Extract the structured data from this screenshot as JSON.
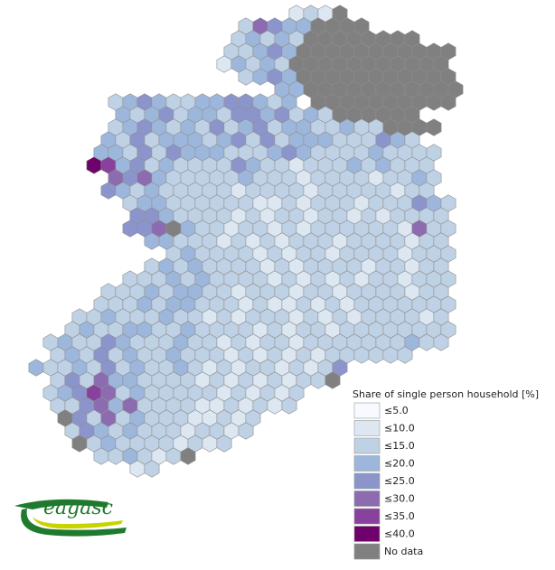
{
  "map": {
    "rows": [
      "..................1218........",
      "..............254338888.......",
      "..............2323288888888...",
      ".............2234388888888888.",
      ".............1323288888888888.",
      "..............234388888888888",
      ".................3388888888888",
      ".....2343223344323.8888888888.",
      "......323423324434232888888..",
      ".....23432324234233223228888...",
      ".....3242333234242333222432...",
      "....332424333222343222232222..",
      "....763423222243221222323222..",
      ".....54532222232221222212232..",
      ".....43232222212222122222122..",
      "......23322222211212221222432.",
      ".......4432222121221221212222.",
      "......44583221221212222221522.",
      "........332221212122212222122.",
      ".........23222212122122221222.",
      "........232322221212222122122.",
      "......22232322221212121221222.",
      ".....222323322122212212222122.",
      "....2223233222121121212222222.",
      "...22322232212122212121222212.",
      "..232233223222212122122222222.",
      ".2322432223221212212222222322.",
      ".2324232232221212121222222....",
      "3223242322321212212124........",
      ".24253322221212121228.........",
      ".234652322222121212...........",
      ".22453522221121212............",
      "..84252322211212..............",
      "..2432322212212...............",
      "...82322221212................",
      "....2232128...................",
      ".......12....................."
    ]
  },
  "legend": {
    "title": "Share of single person household [%]",
    "items": [
      {
        "label": "≤5.0",
        "color": "#f7fbff"
      },
      {
        "label": "≤10.0",
        "color": "#dce7f2"
      },
      {
        "label": "≤15.0",
        "color": "#bfd1e5"
      },
      {
        "label": "≤20.0",
        "color": "#9db7dc"
      },
      {
        "label": "≤25.0",
        "color": "#8b95cc"
      },
      {
        "label": "≤30.0",
        "color": "#8c6bb1"
      },
      {
        "label": "≤35.0",
        "color": "#88419d"
      },
      {
        "label": "≤40.0",
        "color": "#6e016b"
      },
      {
        "label": "No data",
        "color": "#808080"
      }
    ]
  },
  "logo": {
    "text": "eagasc"
  }
}
